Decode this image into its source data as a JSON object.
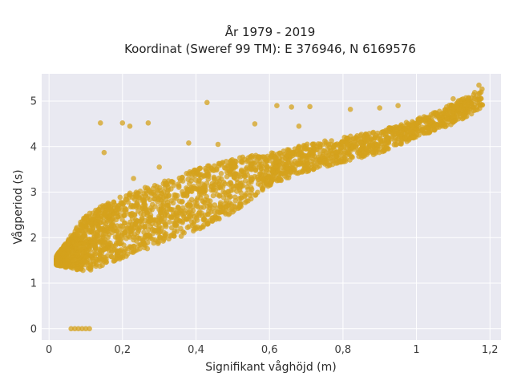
{
  "chart_data": {
    "type": "scatter",
    "title_line1": "År 1979 - 2019",
    "title_line2": "Koordinat (Sweref 99 TM): E 376946, N 6169576",
    "xlabel": "Signifikant våghöjd (m)",
    "ylabel": "Vågperiod (s)",
    "xlim": [
      -0.02,
      1.23
    ],
    "ylim": [
      -0.25,
      5.6
    ],
    "x_ticks": [
      0,
      0.2,
      0.4,
      0.6,
      0.8,
      1,
      1.2
    ],
    "x_tick_labels": [
      "0",
      "0,2",
      "0,4",
      "0,6",
      "0,8",
      "1",
      "1,2"
    ],
    "y_ticks": [
      0,
      1,
      2,
      3,
      4,
      5
    ],
    "y_tick_labels": [
      "0",
      "1",
      "2",
      "3",
      "4",
      "5"
    ],
    "grid": true,
    "marker_color": "#d4a21c",
    "plot_background": "#e9e9f1",
    "trend_upper": [
      [
        0.02,
        1.6
      ],
      [
        0.1,
        2.5
      ],
      [
        0.2,
        2.95
      ],
      [
        0.3,
        3.2
      ],
      [
        0.4,
        3.5
      ],
      [
        0.5,
        3.75
      ],
      [
        0.6,
        3.85
      ],
      [
        0.7,
        4.05
      ],
      [
        0.8,
        4.2
      ],
      [
        0.9,
        4.35
      ],
      [
        1.0,
        4.6
      ],
      [
        1.1,
        4.95
      ],
      [
        1.18,
        5.3
      ]
    ],
    "trend_lower": [
      [
        0.02,
        1.4
      ],
      [
        0.1,
        1.25
      ],
      [
        0.2,
        1.55
      ],
      [
        0.3,
        1.85
      ],
      [
        0.4,
        2.15
      ],
      [
        0.5,
        2.55
      ],
      [
        0.6,
        3.15
      ],
      [
        0.7,
        3.45
      ],
      [
        0.8,
        3.65
      ],
      [
        0.9,
        3.85
      ],
      [
        1.0,
        4.2
      ],
      [
        1.1,
        4.5
      ],
      [
        1.18,
        4.85
      ]
    ],
    "outlier_points": [
      [
        0.06,
        0
      ],
      [
        0.07,
        0
      ],
      [
        0.08,
        0
      ],
      [
        0.09,
        0
      ],
      [
        0.1,
        0
      ],
      [
        0.11,
        0
      ],
      [
        0.14,
        4.52
      ],
      [
        0.2,
        4.52
      ],
      [
        0.22,
        4.45
      ],
      [
        0.27,
        4.52
      ],
      [
        0.15,
        3.87
      ],
      [
        0.43,
        4.97
      ],
      [
        0.62,
        4.9
      ],
      [
        0.66,
        4.87
      ],
      [
        0.71,
        4.88
      ],
      [
        0.82,
        4.82
      ],
      [
        0.9,
        4.85
      ],
      [
        0.95,
        4.9
      ],
      [
        1.1,
        5.05
      ],
      [
        1.17,
        5.35
      ],
      [
        0.38,
        4.08
      ],
      [
        0.46,
        4.05
      ],
      [
        0.23,
        3.3
      ],
      [
        0.3,
        3.55
      ],
      [
        0.56,
        4.5
      ],
      [
        0.68,
        4.45
      ]
    ]
  }
}
